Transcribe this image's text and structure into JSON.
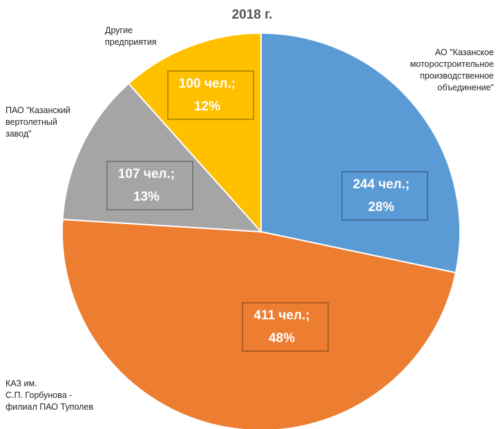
{
  "chart_data": {
    "type": "pie",
    "title": "2018 г.",
    "categories": [
      "АО \"Казанское\nмоторостроительное\nпроизводственное\nобъединение\"",
      "КАЗ им.\nС.П. Горбунова -\nфилиал ПАО Туполев",
      "ПАО \"Казанский\nвертолетный\nзавод\"",
      "Другие\nпредприятия"
    ],
    "values": [
      244,
      411,
      107,
      100
    ],
    "value_labels": [
      "244 чел.;",
      "411 чел.;",
      "107 чел.;",
      "100 чел.;"
    ],
    "percent_values": [
      28,
      48,
      13,
      12
    ],
    "percent_labels": [
      "28%",
      "48%",
      "13%",
      "12%"
    ],
    "colors": [
      "#5b9bd5",
      "#ed7d31",
      "#a5a5a5",
      "#ffc000"
    ]
  }
}
